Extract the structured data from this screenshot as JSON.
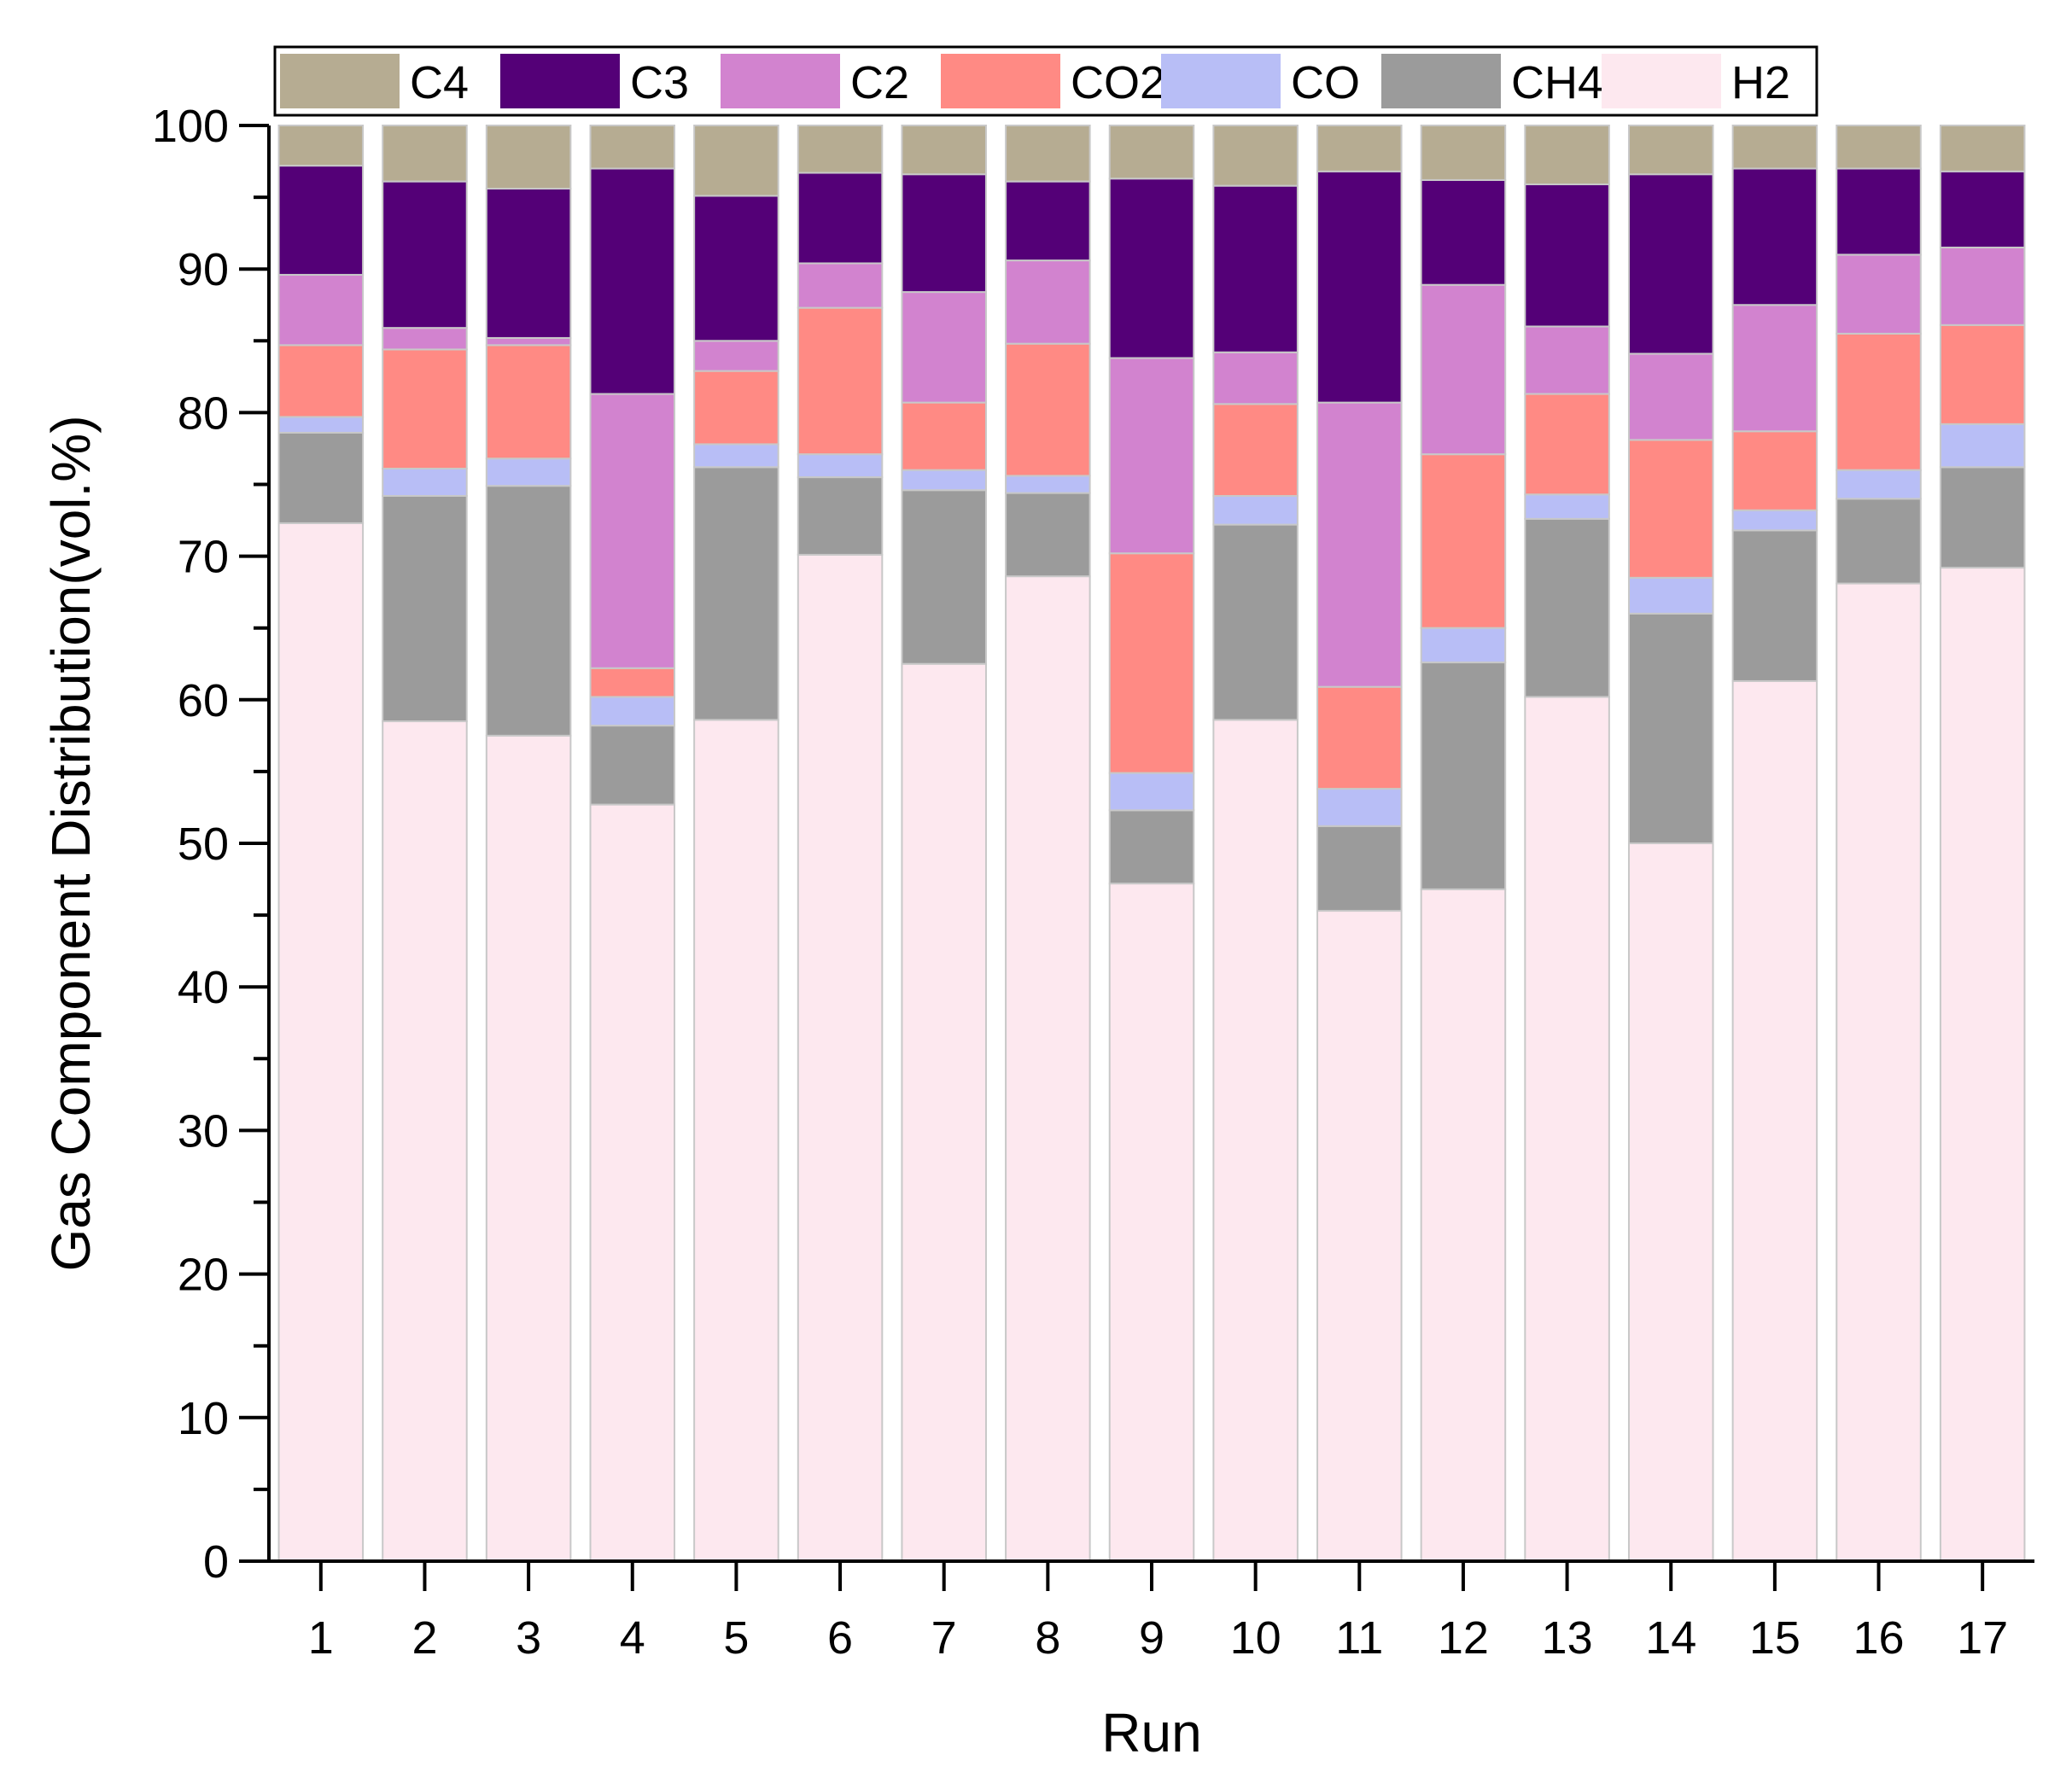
{
  "chart_data": {
    "type": "bar",
    "stacked": true,
    "title": "",
    "xlabel": "Run",
    "ylabel": "Gas Component Distribution(vol.%)",
    "ylim": [
      0,
      100
    ],
    "yticks": [
      "0",
      "10",
      "20",
      "30",
      "40",
      "50",
      "60",
      "70",
      "80",
      "90",
      "100"
    ],
    "categories": [
      "1",
      "2",
      "3",
      "4",
      "5",
      "6",
      "7",
      "8",
      "9",
      "10",
      "11",
      "12",
      "13",
      "14",
      "15",
      "16",
      "17"
    ],
    "legend_position": "top",
    "legend_order": [
      "C4",
      "C3",
      "C2",
      "CO2",
      "CO",
      "CH4",
      "H2"
    ],
    "series": [
      {
        "name": "H2",
        "color": "#FDE8EF",
        "values": [
          72.3,
          58.5,
          57.5,
          52.7,
          58.6,
          70.1,
          62.5,
          68.6,
          47.2,
          58.6,
          45.3,
          46.8,
          60.2,
          50.0,
          61.3,
          68.1,
          69.2
        ]
      },
      {
        "name": "CH4",
        "color": "#9B9B9B",
        "values": [
          6.3,
          15.7,
          17.4,
          5.5,
          17.6,
          5.4,
          12.1,
          5.8,
          5.1,
          13.6,
          5.9,
          15.8,
          12.4,
          16.0,
          10.5,
          5.9,
          7.0
        ]
      },
      {
        "name": "CO",
        "color": "#B8BEF6",
        "values": [
          1.1,
          1.9,
          1.9,
          2.0,
          1.6,
          1.6,
          1.4,
          1.2,
          2.6,
          2.0,
          2.6,
          2.4,
          1.7,
          2.5,
          1.4,
          2.0,
          3.0
        ]
      },
      {
        "name": "CO2",
        "color": "#FF8A84",
        "values": [
          5.0,
          8.3,
          7.9,
          2.0,
          5.1,
          10.2,
          4.7,
          9.2,
          15.3,
          6.4,
          7.1,
          12.1,
          7.0,
          9.6,
          5.5,
          9.5,
          6.9
        ]
      },
      {
        "name": "C2",
        "color": "#D283CF",
        "values": [
          4.9,
          1.5,
          0.5,
          19.1,
          2.1,
          3.1,
          7.7,
          5.8,
          13.6,
          3.6,
          19.8,
          11.8,
          4.7,
          6.0,
          8.8,
          5.5,
          5.4
        ]
      },
      {
        "name": "C3",
        "color": "#540077",
        "values": [
          7.6,
          10.2,
          10.4,
          15.7,
          10.1,
          6.3,
          8.2,
          5.5,
          12.5,
          11.6,
          16.1,
          7.3,
          9.9,
          12.5,
          9.5,
          6.0,
          5.3
        ]
      },
      {
        "name": "C4",
        "color": "#B6AC92",
        "values": [
          2.8,
          3.9,
          4.4,
          3.0,
          4.9,
          3.3,
          3.4,
          3.9,
          3.7,
          4.2,
          3.2,
          3.8,
          4.1,
          3.4,
          3.0,
          3.0,
          3.2
        ]
      }
    ]
  }
}
